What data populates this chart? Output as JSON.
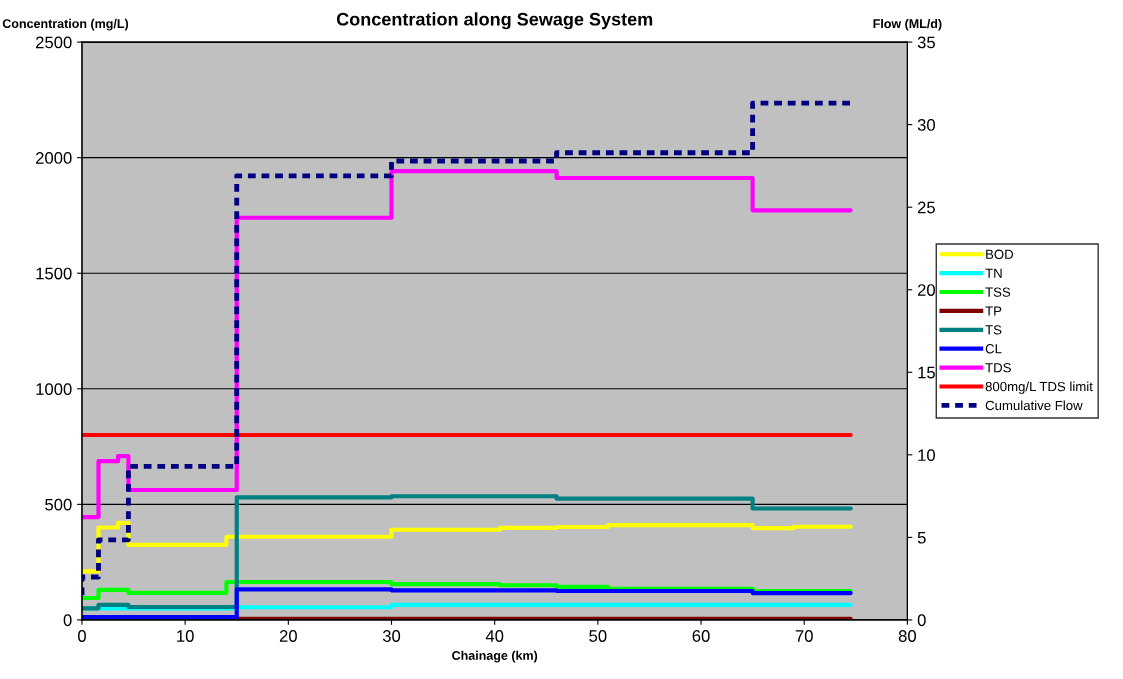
{
  "chart_data": {
    "type": "line",
    "title": "Concentration along Sewage System",
    "xlabel": "Chainage (km)",
    "ylabel": "Concentration (mg/L)",
    "y2label": "Flow (ML/d)",
    "xlim": [
      0,
      80
    ],
    "xticks": [
      0,
      10,
      20,
      30,
      40,
      50,
      60,
      70,
      80
    ],
    "ylim": [
      0,
      2500
    ],
    "yticks": [
      0,
      500,
      1000,
      1500,
      2000,
      2500
    ],
    "y2lim": [
      0,
      35
    ],
    "y2ticks": [
      0,
      5,
      10,
      15,
      20,
      25,
      30,
      35
    ],
    "grid": "y",
    "legend": "right",
    "line_style": "solid",
    "marker": "none",
    "series": [
      {
        "name": "BOD",
        "color": "#ffff00",
        "x": [
          0,
          1.6,
          1.6,
          3.5,
          3.5,
          4.5,
          4.5,
          14,
          14,
          30,
          30,
          40.5,
          40.5,
          46,
          46,
          51,
          51,
          65,
          65,
          69,
          69,
          74.5
        ],
        "values": [
          210,
          210,
          400,
          400,
          420,
          420,
          325,
          325,
          360,
          360,
          390,
          390,
          398,
          398,
          402,
          402,
          410,
          410,
          397,
          397,
          403,
          403
        ]
      },
      {
        "name": "TN",
        "color": "#00ffff",
        "x": [
          0,
          15,
          15,
          30,
          30,
          74.5
        ],
        "values": [
          50,
          50,
          55,
          55,
          65,
          65
        ]
      },
      {
        "name": "TSS",
        "color": "#00ff00",
        "x": [
          0,
          1.6,
          1.6,
          4.5,
          4.5,
          14,
          14,
          30,
          30,
          40.5,
          40.5,
          46,
          46,
          51,
          51,
          65,
          65,
          74.5
        ],
        "values": [
          95,
          95,
          130,
          130,
          117,
          117,
          164,
          164,
          155,
          155,
          150,
          150,
          143,
          143,
          135,
          135,
          125,
          125
        ]
      },
      {
        "name": "TP",
        "color": "#800000",
        "x": [
          0,
          74.5
        ],
        "values": [
          5,
          5
        ]
      },
      {
        "name": "TS",
        "color": "#008080",
        "x": [
          0,
          1.6,
          1.6,
          4.5,
          4.5,
          15,
          15,
          30,
          30,
          46,
          46,
          65,
          65,
          74.5
        ],
        "values": [
          50,
          50,
          65,
          65,
          56,
          56,
          530,
          530,
          535,
          535,
          525,
          525,
          482,
          482
        ]
      },
      {
        "name": "CL",
        "color": "#0000ff",
        "x": [
          0,
          15,
          15,
          30,
          30,
          46,
          46,
          65,
          65,
          74.5
        ],
        "values": [
          12,
          12,
          132,
          132,
          128,
          128,
          125,
          125,
          116,
          116
        ]
      },
      {
        "name": "TDS",
        "color": "#ff00ff",
        "x": [
          0,
          1.6,
          1.6,
          3.5,
          3.5,
          4.5,
          4.5,
          15,
          15,
          30,
          30,
          46,
          46,
          65,
          65,
          74.5
        ],
        "values": [
          445,
          445,
          687,
          687,
          709,
          709,
          562,
          562,
          1740,
          1740,
          1942,
          1942,
          1912,
          1912,
          1772,
          1772
        ]
      },
      {
        "name": "800mg/L TDS limit",
        "color": "#ff0000",
        "x": [
          0,
          74.5
        ],
        "values": [
          800,
          800
        ]
      },
      {
        "name": "Cumulative Flow",
        "color": "#000080",
        "axis": "y2",
        "line_style": "dashed",
        "x": [
          0,
          0,
          1.6,
          1.6,
          4.5,
          4.5,
          15,
          15,
          30,
          30,
          46,
          46,
          65,
          65,
          74.5
        ],
        "values": [
          1.5,
          2.6,
          2.6,
          4.85,
          4.85,
          9.3,
          9.3,
          26.9,
          26.9,
          27.8,
          27.8,
          28.3,
          28.3,
          31.3,
          31.3
        ]
      }
    ]
  }
}
